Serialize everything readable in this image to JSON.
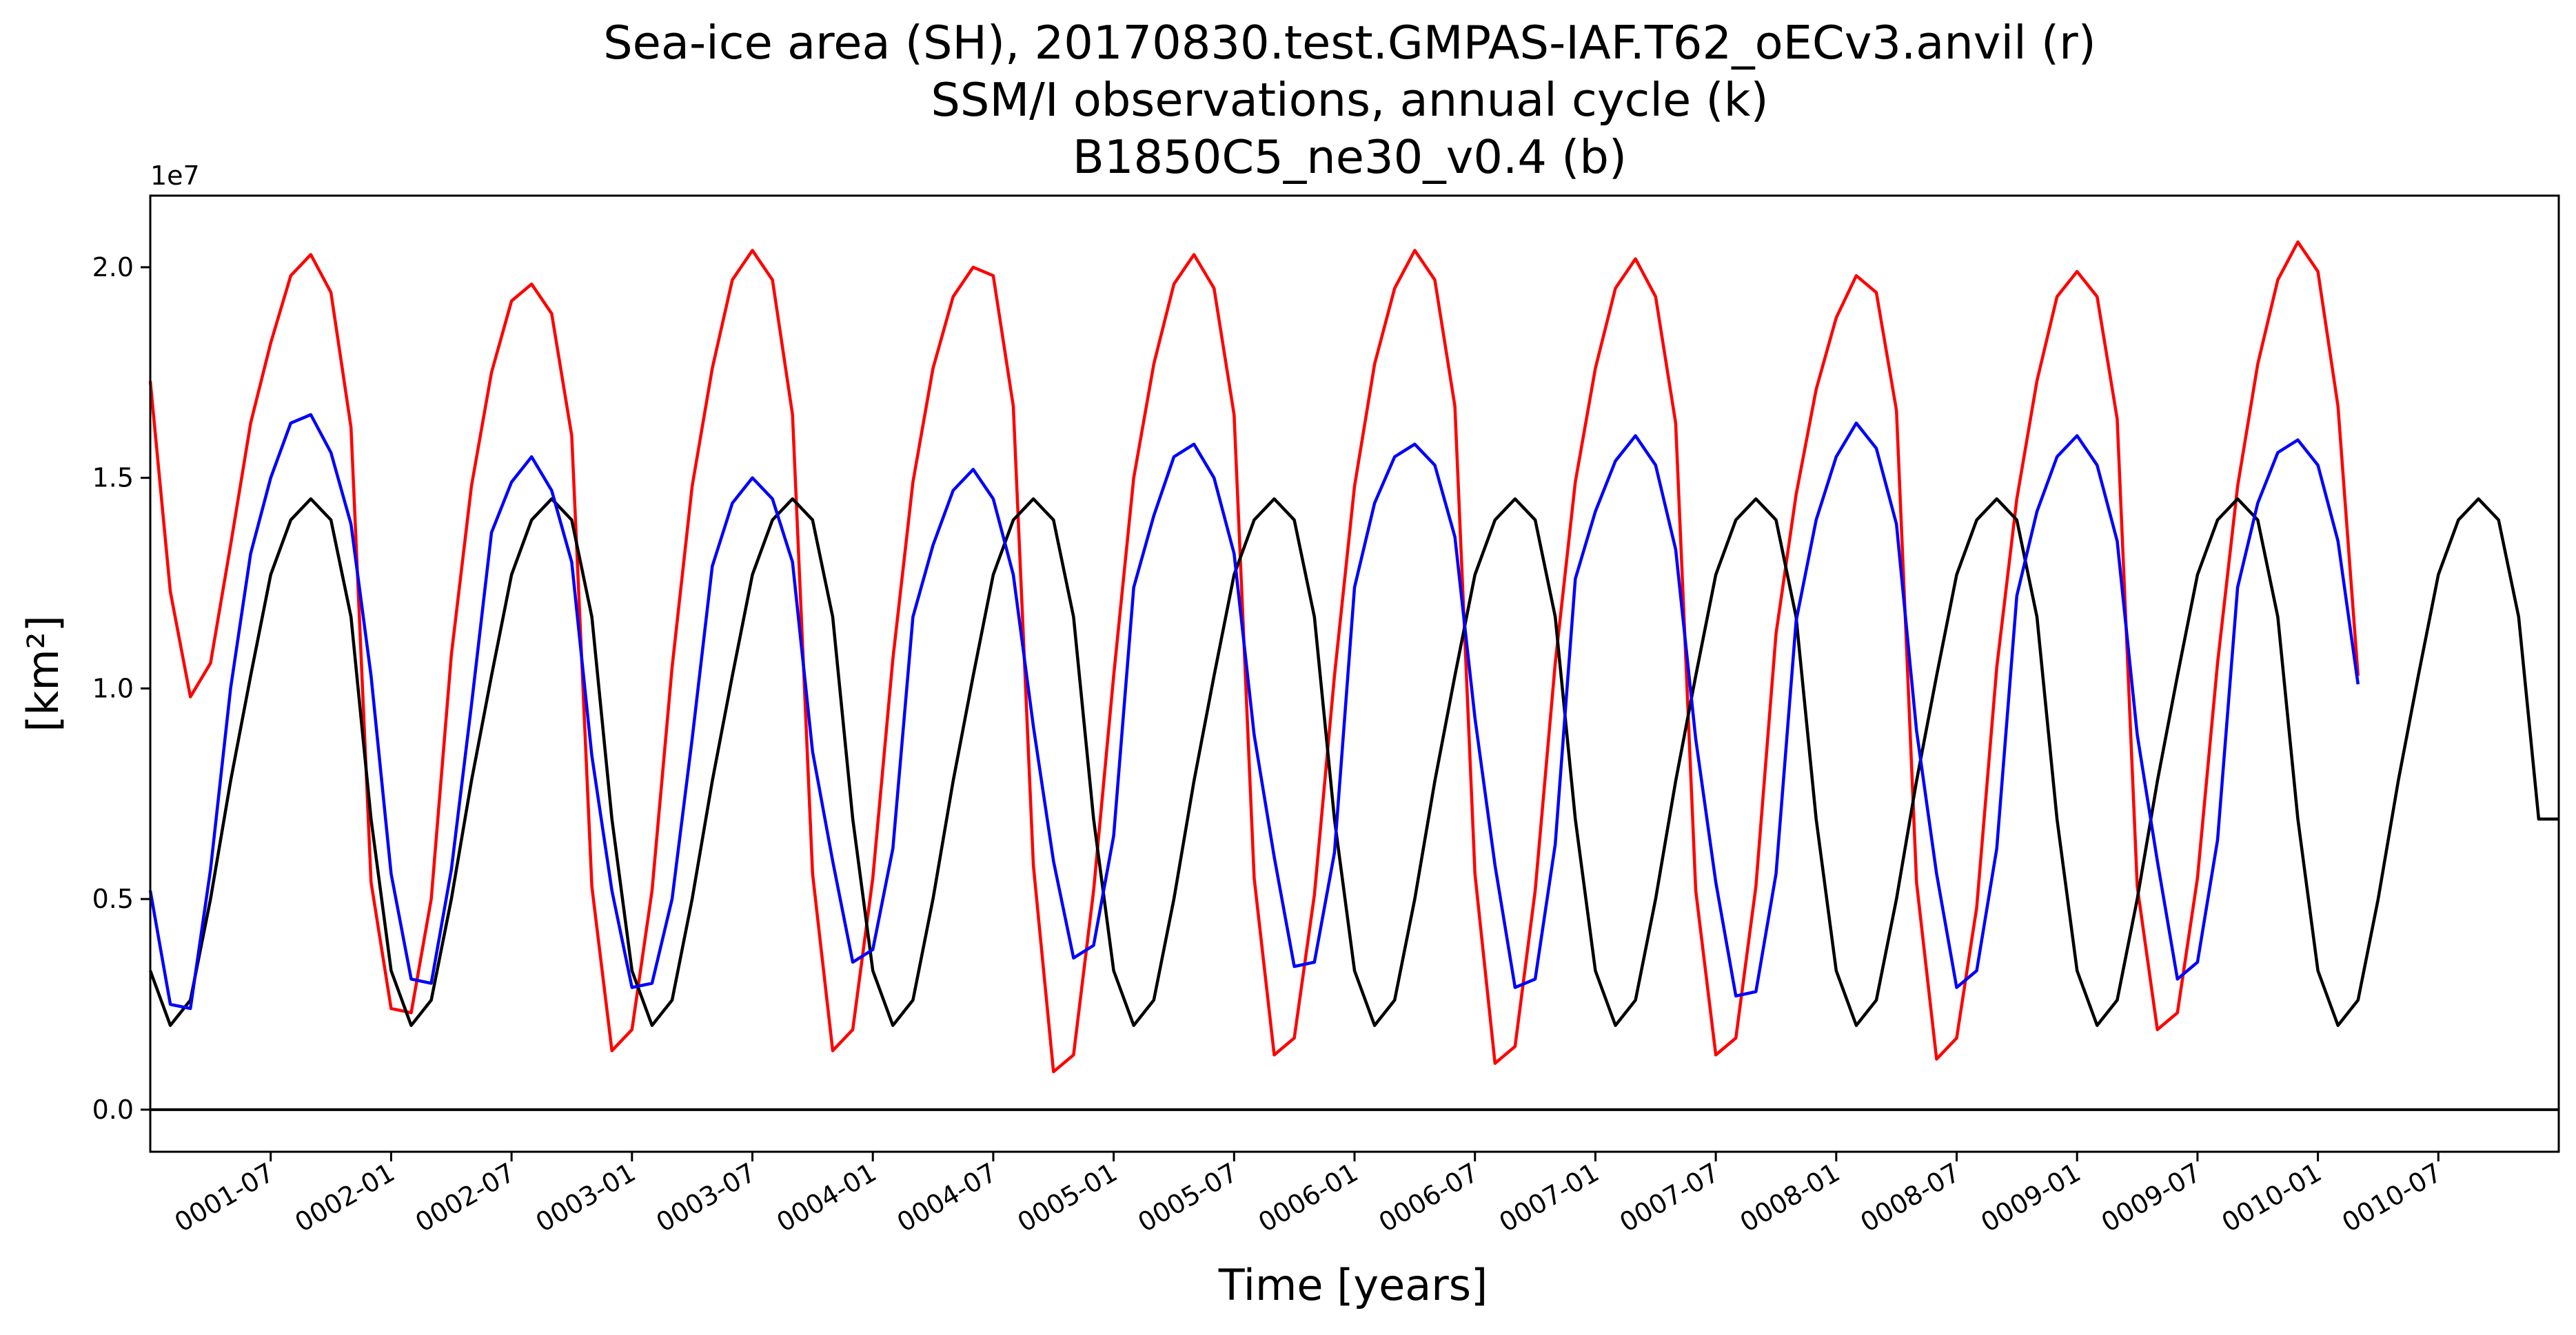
{
  "chart_data": {
    "type": "line",
    "title": [
      "Sea-ice area (SH), 20170830.test.GMPAS-IAF.T62_oECv3.anvil (r)",
      "SSM/I observations, annual cycle (k)",
      "B1850C5_ne30_v0.4 (b)"
    ],
    "xlabel": "Time [years]",
    "ylabel": "[km²]",
    "y_offset_label": "1e7",
    "ylim": [
      -1.0,
      21.7
    ],
    "xlim": [
      0,
      120
    ],
    "x_units": "months since 0001-01",
    "y_units_multiplier": 10000000,
    "x_ticks": [
      {
        "x": 6,
        "label": "0001-07"
      },
      {
        "x": 12,
        "label": "0002-01"
      },
      {
        "x": 18,
        "label": "0002-07"
      },
      {
        "x": 24,
        "label": "0003-01"
      },
      {
        "x": 30,
        "label": "0003-07"
      },
      {
        "x": 36,
        "label": "0004-01"
      },
      {
        "x": 42,
        "label": "0004-07"
      },
      {
        "x": 48,
        "label": "0005-01"
      },
      {
        "x": 54,
        "label": "0005-07"
      },
      {
        "x": 60,
        "label": "0006-01"
      },
      {
        "x": 66,
        "label": "0006-07"
      },
      {
        "x": 72,
        "label": "0007-01"
      },
      {
        "x": 78,
        "label": "0007-07"
      },
      {
        "x": 84,
        "label": "0008-01"
      },
      {
        "x": 90,
        "label": "0008-07"
      },
      {
        "x": 96,
        "label": "0009-01"
      },
      {
        "x": 102,
        "label": "0009-07"
      },
      {
        "x": 108,
        "label": "0010-01"
      },
      {
        "x": 114,
        "label": "0010-07"
      }
    ],
    "y_ticks": [
      {
        "y": 0.0,
        "label": "0.0"
      },
      {
        "y": 5.0,
        "label": "0.5"
      },
      {
        "y": 10.0,
        "label": "1.0"
      },
      {
        "y": 15.0,
        "label": "1.5"
      },
      {
        "y": 20.0,
        "label": "2.0"
      }
    ],
    "zero_line": 0.0,
    "grid": false,
    "series": [
      {
        "name": "r",
        "color": "#ff0000",
        "values": [
          17.3,
          12.3,
          9.8,
          10.6,
          13.4,
          16.3,
          18.2,
          19.8,
          20.3,
          19.4,
          16.2,
          5.4,
          2.4,
          2.3,
          5.0,
          10.8,
          14.8,
          17.5,
          19.2,
          19.6,
          18.9,
          16.0,
          5.3,
          1.4,
          1.9,
          5.2,
          10.5,
          14.8,
          17.6,
          19.7,
          20.4,
          19.7,
          16.5,
          5.6,
          1.4,
          1.9,
          5.5,
          10.7,
          14.9,
          17.6,
          19.3,
          20.0,
          19.8,
          16.7,
          5.8,
          0.9,
          1.3,
          5.2,
          10.3,
          15.0,
          17.7,
          19.6,
          20.3,
          19.5,
          16.5,
          5.5,
          1.3,
          1.7,
          5.1,
          10.3,
          14.8,
          17.7,
          19.5,
          20.4,
          19.7,
          16.7,
          5.6,
          1.1,
          1.5,
          5.2,
          10.6,
          14.9,
          17.6,
          19.5,
          20.2,
          19.3,
          16.3,
          5.2,
          1.3,
          1.7,
          5.3,
          11.3,
          14.6,
          17.1,
          18.8,
          19.8,
          19.4,
          16.6,
          5.4,
          1.2,
          1.7,
          4.8,
          10.5,
          14.5,
          17.3,
          19.3,
          19.9,
          19.3,
          16.4,
          5.3,
          1.9,
          2.3,
          5.5,
          10.6,
          14.8,
          17.7,
          19.7,
          20.6,
          19.9,
          16.7,
          10.3
        ]
      },
      {
        "name": "k",
        "color": "#000000",
        "values": [
          3.3,
          2.0,
          2.6,
          5.0,
          7.8,
          10.3,
          12.7,
          14.0,
          14.5,
          14.0,
          11.7,
          6.9,
          3.3,
          2.0,
          2.6,
          5.0,
          7.8,
          10.3,
          12.7,
          14.0,
          14.5,
          14.0,
          11.7,
          6.9,
          3.3,
          2.0,
          2.6,
          5.0,
          7.8,
          10.3,
          12.7,
          14.0,
          14.5,
          14.0,
          11.7,
          6.9,
          3.3,
          2.0,
          2.6,
          5.0,
          7.8,
          10.3,
          12.7,
          14.0,
          14.5,
          14.0,
          11.7,
          6.9,
          3.3,
          2.0,
          2.6,
          5.0,
          7.8,
          10.3,
          12.7,
          14.0,
          14.5,
          14.0,
          11.7,
          6.9,
          3.3,
          2.0,
          2.6,
          5.0,
          7.8,
          10.3,
          12.7,
          14.0,
          14.5,
          14.0,
          11.7,
          6.9,
          3.3,
          2.0,
          2.6,
          5.0,
          7.8,
          10.3,
          12.7,
          14.0,
          14.5,
          14.0,
          11.7,
          6.9,
          3.3,
          2.0,
          2.6,
          5.0,
          7.8,
          10.3,
          12.7,
          14.0,
          14.5,
          14.0,
          11.7,
          6.9,
          3.3,
          2.0,
          2.6,
          5.0,
          7.8,
          10.3,
          12.7,
          14.0,
          14.5,
          14.0,
          11.7,
          6.9,
          3.3,
          2.0,
          2.6,
          5.0,
          7.8,
          10.3,
          12.7,
          14.0,
          14.5,
          14.0,
          11.7,
          6.9,
          6.9
        ]
      },
      {
        "name": "b",
        "color": "#0000ff",
        "values": [
          5.2,
          2.5,
          2.4,
          5.7,
          10.0,
          13.2,
          15.0,
          16.3,
          16.5,
          15.6,
          13.9,
          10.3,
          5.6,
          3.1,
          3.0,
          5.7,
          9.6,
          13.7,
          14.9,
          15.5,
          14.7,
          13.0,
          8.4,
          5.2,
          2.9,
          3.0,
          5.0,
          8.8,
          12.9,
          14.4,
          15.0,
          14.5,
          13.0,
          8.5,
          5.9,
          3.5,
          3.8,
          6.2,
          11.7,
          13.4,
          14.7,
          15.2,
          14.5,
          12.7,
          9.1,
          5.9,
          3.6,
          3.9,
          6.5,
          12.4,
          14.1,
          15.5,
          15.8,
          15.0,
          13.2,
          8.9,
          6.0,
          3.4,
          3.5,
          6.1,
          12.4,
          14.4,
          15.5,
          15.8,
          15.3,
          13.6,
          9.3,
          5.8,
          2.9,
          3.1,
          6.3,
          12.6,
          14.2,
          15.4,
          16.0,
          15.3,
          13.3,
          8.8,
          5.4,
          2.7,
          2.8,
          5.6,
          11.6,
          14.0,
          15.5,
          16.3,
          15.7,
          13.9,
          9.0,
          5.6,
          2.9,
          3.3,
          6.2,
          12.2,
          14.2,
          15.5,
          16.0,
          15.3,
          13.5,
          8.9,
          5.9,
          3.1,
          3.5,
          6.4,
          12.4,
          14.4,
          15.6,
          15.9,
          15.3,
          13.5,
          10.1
        ]
      }
    ]
  }
}
